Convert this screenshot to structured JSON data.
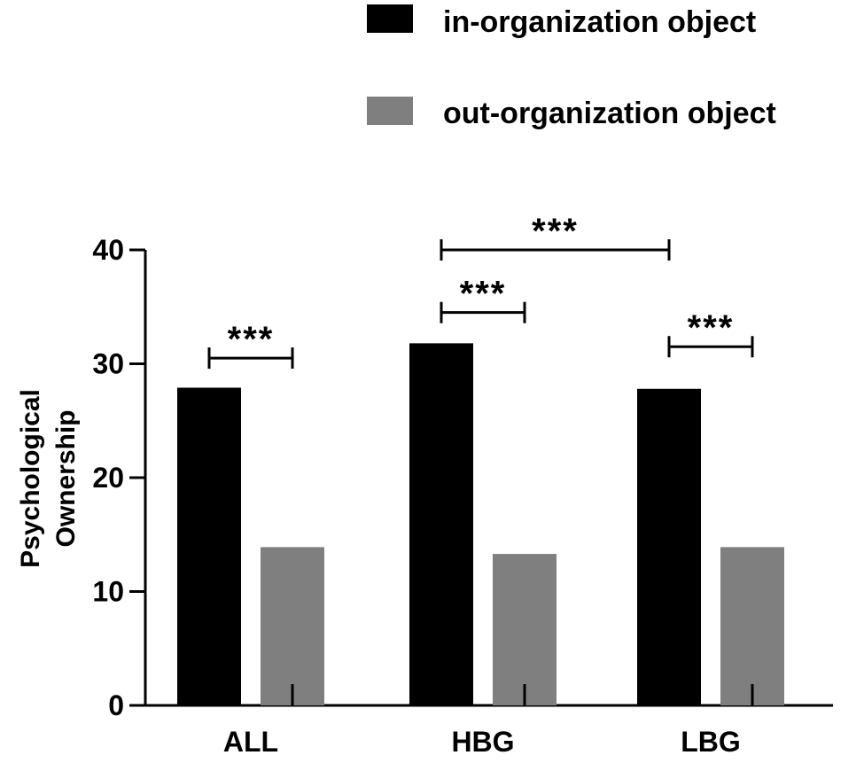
{
  "chart_data": {
    "type": "bar",
    "title": "",
    "xlabel": "",
    "ylabel": "Psychological Ownership",
    "ylabel_lines": [
      "Psychological",
      "Ownership"
    ],
    "ylim": [
      0,
      40
    ],
    "yticks": [
      "0",
      "10",
      "20",
      "30",
      "40"
    ],
    "grid": false,
    "legend_position": "top-right",
    "categories": [
      "ALL",
      "HBG",
      "LBG"
    ],
    "series": [
      {
        "name": "in-organization object",
        "color": "#000000",
        "values": [
          27.9,
          31.8,
          27.8
        ]
      },
      {
        "name": "out-organization object",
        "color": "#7f7f7f",
        "values": [
          13.9,
          13.3,
          13.9
        ]
      }
    ],
    "annotations": [
      {
        "label": "***",
        "from": "ALL in-organization object",
        "to": "ALL out-organization object",
        "y": 30.5
      },
      {
        "label": "***",
        "from": "HBG in-organization object",
        "to": "HBG out-organization object",
        "y": 34.5
      },
      {
        "label": "***",
        "from": "HBG in-organization object",
        "to": "LBG in-organization object",
        "y": 40
      },
      {
        "label": "***",
        "from": "LBG in-organization object",
        "to": "LBG out-organization object",
        "y": 31.5
      }
    ]
  }
}
